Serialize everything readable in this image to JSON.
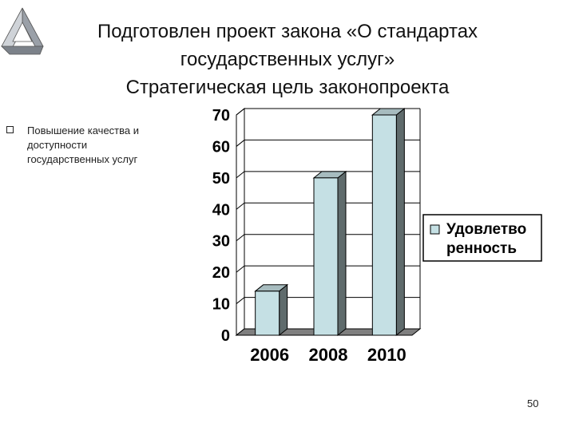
{
  "slide": {
    "title_lines": [
      "Подготовлен проект закона «О стандартах",
      "государственных услуг»",
      "Стратегическая цель законопроекта"
    ],
    "bullet_lines": [
      "Повышение качества и",
      "доступности",
      "государственных услуг"
    ],
    "page_number": "50"
  },
  "colors": {
    "bar_front": "#c5e0e4",
    "bar_side": "#5f6b6c",
    "bar_top": "#a7bcbf",
    "wall": "#ffffff",
    "floor": "#7f7f7f"
  },
  "chart_data": {
    "type": "bar",
    "categories": [
      "2006",
      "2008",
      "2010"
    ],
    "series": [
      {
        "name": "Удовлетворенность",
        "values": [
          14,
          50,
          70
        ]
      }
    ],
    "legend_lines": [
      "Удовлетво",
      "ренность"
    ],
    "y_ticks": [
      "0",
      "10",
      "20",
      "30",
      "40",
      "50",
      "60",
      "70"
    ],
    "ylim": [
      0,
      70
    ],
    "grid": true,
    "legend_position": "right",
    "three_d": true
  }
}
